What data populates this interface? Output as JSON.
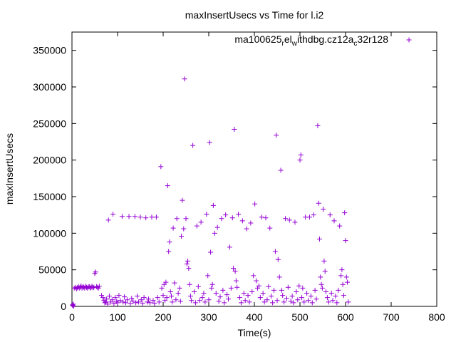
{
  "chart_data": {
    "type": "scatter",
    "title": "maxInsertUsecs vs Time for l.i2",
    "xlabel": "Time(s)",
    "ylabel": "maxInsertUsecs",
    "xlim": [
      0,
      800
    ],
    "ylim": [
      0,
      375000
    ],
    "x_ticks": [
      0,
      100,
      200,
      300,
      400,
      500,
      600,
      700,
      800
    ],
    "y_ticks": [
      0,
      50000,
      100000,
      150000,
      200000,
      250000,
      300000,
      350000
    ],
    "x_tick_labels": [
      "0",
      "100",
      "200",
      "300",
      "400",
      "500",
      "600",
      "700",
      "800"
    ],
    "y_tick_labels": [
      "0",
      "50000",
      "100000",
      "150000",
      "200000",
      "250000",
      "300000",
      "350000"
    ],
    "grid": false,
    "legend_position": "top-right",
    "legend_label": {
      "base": "ma100625",
      "sub1": "r",
      "mid1": "el",
      "sub2": "w",
      "mid2": "ithdbg.cz12a",
      "sub3": "c",
      "end": "32r128"
    },
    "colors": {
      "series": "#9400d3",
      "axis": "#000000",
      "background": "#ffffff"
    },
    "series": [
      {
        "name": "ma100625_rel_withdbg.cz12a_c32r128",
        "marker": "plus",
        "points": [
          [
            1,
            2000
          ],
          [
            2,
            1000
          ],
          [
            3,
            3000
          ],
          [
            4,
            500
          ],
          [
            5,
            25000
          ],
          [
            8,
            26000
          ],
          [
            10,
            24000
          ],
          [
            12,
            25500
          ],
          [
            14,
            27000
          ],
          [
            16,
            25000
          ],
          [
            18,
            26000
          ],
          [
            20,
            28000
          ],
          [
            22,
            25000
          ],
          [
            24,
            27000
          ],
          [
            26,
            26000
          ],
          [
            28,
            25000
          ],
          [
            30,
            27500
          ],
          [
            32,
            26000
          ],
          [
            34,
            25000
          ],
          [
            36,
            26500
          ],
          [
            38,
            27000
          ],
          [
            40,
            25000
          ],
          [
            42,
            26000
          ],
          [
            44,
            27500
          ],
          [
            46,
            25500
          ],
          [
            48,
            26000
          ],
          [
            50,
            45000
          ],
          [
            52,
            47000
          ],
          [
            54,
            27000
          ],
          [
            56,
            26000
          ],
          [
            58,
            25000
          ],
          [
            60,
            27500
          ],
          [
            65,
            15000
          ],
          [
            68,
            12000
          ],
          [
            70,
            8000
          ],
          [
            72,
            5000
          ],
          [
            74,
            6000
          ],
          [
            76,
            10000
          ],
          [
            78,
            3000
          ],
          [
            80,
            118000
          ],
          [
            82,
            14000
          ],
          [
            85,
            6000
          ],
          [
            88,
            9000
          ],
          [
            90,
            126000
          ],
          [
            92,
            4000
          ],
          [
            95,
            12000
          ],
          [
            98,
            7000
          ],
          [
            100,
            5000
          ],
          [
            103,
            15000
          ],
          [
            106,
            8000
          ],
          [
            110,
            123000
          ],
          [
            112,
            6000
          ],
          [
            115,
            13000
          ],
          [
            118,
            5000
          ],
          [
            121,
            9000
          ],
          [
            125,
            123000
          ],
          [
            128,
            4000
          ],
          [
            131,
            11000
          ],
          [
            134,
            7000
          ],
          [
            138,
            123000
          ],
          [
            140,
            5000
          ],
          [
            143,
            14000
          ],
          [
            146,
            6000
          ],
          [
            150,
            122000
          ],
          [
            152,
            9000
          ],
          [
            155,
            4000
          ],
          [
            158,
            12000
          ],
          [
            162,
            121000
          ],
          [
            165,
            6000
          ],
          [
            168,
            10000
          ],
          [
            171,
            5000
          ],
          [
            175,
            122000
          ],
          [
            178,
            8000
          ],
          [
            181,
            4000
          ],
          [
            185,
            122000
          ],
          [
            188,
            12000
          ],
          [
            191,
            6000
          ],
          [
            195,
            191000
          ],
          [
            197,
            25000
          ],
          [
            200,
            15000
          ],
          [
            202,
            30000
          ],
          [
            204,
            8000
          ],
          [
            206,
            33000
          ],
          [
            208,
            12000
          ],
          [
            210,
            165000
          ],
          [
            212,
            75000
          ],
          [
            214,
            88000
          ],
          [
            216,
            20000
          ],
          [
            218,
            14000
          ],
          [
            220,
            6000
          ],
          [
            222,
            107000
          ],
          [
            225,
            32000
          ],
          [
            228,
            9000
          ],
          [
            230,
            120000
          ],
          [
            233,
            18000
          ],
          [
            236,
            25000
          ],
          [
            238,
            7000
          ],
          [
            240,
            96000
          ],
          [
            242,
            145000
          ],
          [
            245,
            106000
          ],
          [
            247,
            311000
          ],
          [
            250,
            120000
          ],
          [
            252,
            58000
          ],
          [
            254,
            62000
          ],
          [
            256,
            52000
          ],
          [
            258,
            30000
          ],
          [
            260,
            14000
          ],
          [
            262,
            8000
          ],
          [
            265,
            220000
          ],
          [
            268,
            20000
          ],
          [
            271,
            5000
          ],
          [
            274,
            110000
          ],
          [
            277,
            27000
          ],
          [
            280,
            8000
          ],
          [
            283,
            115000
          ],
          [
            286,
            12000
          ],
          [
            289,
            18000
          ],
          [
            292,
            6000
          ],
          [
            295,
            126000
          ],
          [
            298,
            42000
          ],
          [
            300,
            9000
          ],
          [
            302,
            224000
          ],
          [
            304,
            74000
          ],
          [
            306,
            25000
          ],
          [
            308,
            30000
          ],
          [
            310,
            138000
          ],
          [
            313,
            100000
          ],
          [
            316,
            18000
          ],
          [
            319,
            108000
          ],
          [
            322,
            7000
          ],
          [
            325,
            13000
          ],
          [
            328,
            120000
          ],
          [
            331,
            22000
          ],
          [
            334,
            5000
          ],
          [
            337,
            125000
          ],
          [
            340,
            16000
          ],
          [
            343,
            10000
          ],
          [
            346,
            81000
          ],
          [
            349,
            25000
          ],
          [
            352,
            121000
          ],
          [
            354,
            52000
          ],
          [
            356,
            242000
          ],
          [
            358,
            48000
          ],
          [
            360,
            35000
          ],
          [
            362,
            26000
          ],
          [
            365,
            126000
          ],
          [
            368,
            12000
          ],
          [
            371,
            5000
          ],
          [
            374,
            117000
          ],
          [
            377,
            18000
          ],
          [
            380,
            8000
          ],
          [
            383,
            106000
          ],
          [
            386,
            15000
          ],
          [
            389,
            6000
          ],
          [
            392,
            114000
          ],
          [
            395,
            20000
          ],
          [
            398,
            42000
          ],
          [
            401,
            140000
          ],
          [
            404,
            35000
          ],
          [
            407,
            25000
          ],
          [
            410,
            28000
          ],
          [
            413,
            12000
          ],
          [
            416,
            122000
          ],
          [
            419,
            18000
          ],
          [
            422,
            6000
          ],
          [
            425,
            121000
          ],
          [
            428,
            9000
          ],
          [
            431,
            27000
          ],
          [
            434,
            107000
          ],
          [
            437,
            14000
          ],
          [
            440,
            5000
          ],
          [
            443,
            22000
          ],
          [
            446,
            75000
          ],
          [
            448,
            234000
          ],
          [
            450,
            8000
          ],
          [
            452,
            64000
          ],
          [
            455,
            40000
          ],
          [
            458,
            186000
          ],
          [
            460,
            22000
          ],
          [
            462,
            15000
          ],
          [
            465,
            6000
          ],
          [
            468,
            120000
          ],
          [
            471,
            11000
          ],
          [
            474,
            26000
          ],
          [
            477,
            118000
          ],
          [
            480,
            7000
          ],
          [
            483,
            14000
          ],
          [
            486,
            5000
          ],
          [
            489,
            115000
          ],
          [
            492,
            20000
          ],
          [
            495,
            9000
          ],
          [
            498,
            28000
          ],
          [
            500,
            200000
          ],
          [
            502,
            207000
          ],
          [
            504,
            12000
          ],
          [
            506,
            25000
          ],
          [
            509,
            6000
          ],
          [
            512,
            122000
          ],
          [
            515,
            18000
          ],
          [
            518,
            8000
          ],
          [
            521,
            122000
          ],
          [
            524,
            14000
          ],
          [
            527,
            5000
          ],
          [
            530,
            125000
          ],
          [
            533,
            22000
          ],
          [
            536,
            10000
          ],
          [
            539,
            247000
          ],
          [
            541,
            141000
          ],
          [
            543,
            92000
          ],
          [
            545,
            40000
          ],
          [
            547,
            30000
          ],
          [
            549,
            25000
          ],
          [
            551,
            133000
          ],
          [
            553,
            62000
          ],
          [
            555,
            48000
          ],
          [
            557,
            20000
          ],
          [
            560,
            12000
          ],
          [
            563,
            6000
          ],
          [
            566,
            125000
          ],
          [
            569,
            18000
          ],
          [
            572,
            8000
          ],
          [
            575,
            117000
          ],
          [
            578,
            14000
          ],
          [
            581,
            5000
          ],
          [
            584,
            22000
          ],
          [
            587,
            110000
          ],
          [
            590,
            42000
          ],
          [
            592,
            50000
          ],
          [
            594,
            30000
          ],
          [
            596,
            15000
          ],
          [
            598,
            128000
          ],
          [
            600,
            90000
          ],
          [
            602,
            40000
          ],
          [
            604,
            33000
          ],
          [
            606,
            6000
          ]
        ]
      }
    ]
  }
}
